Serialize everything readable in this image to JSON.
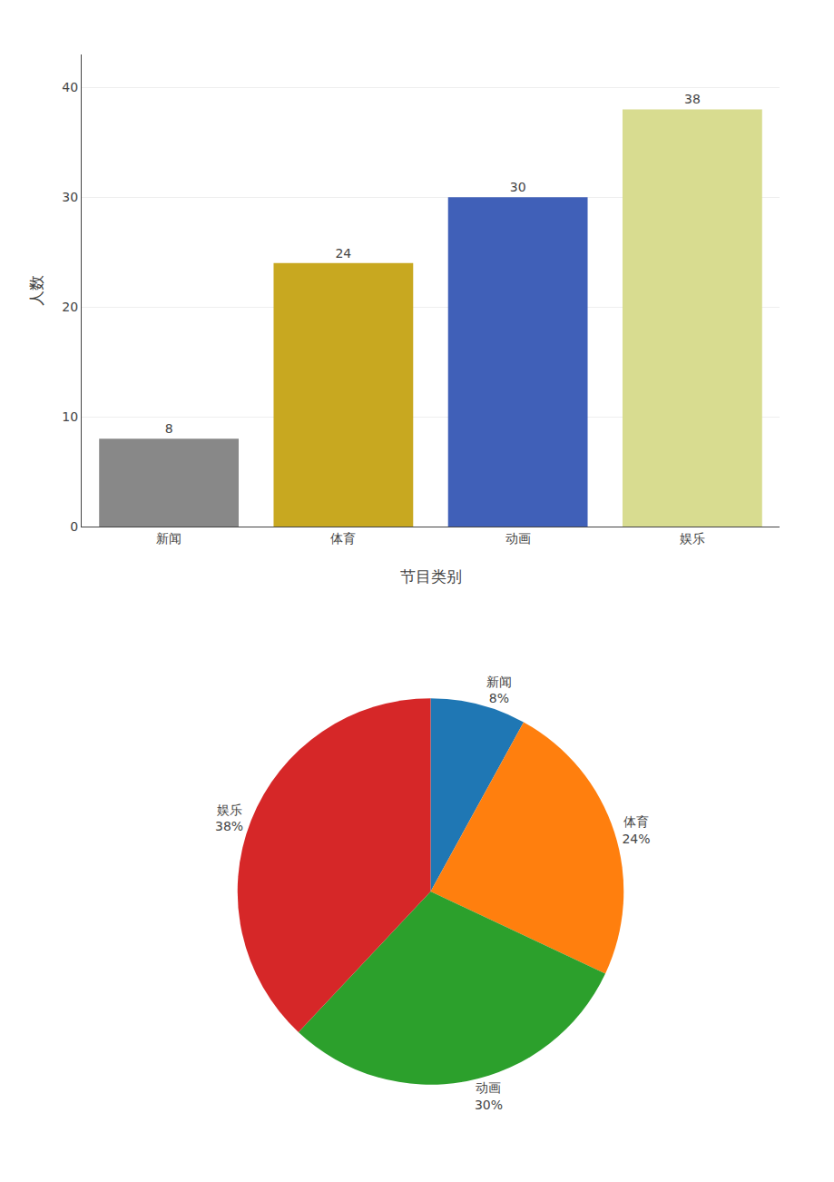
{
  "chart_data": [
    {
      "type": "bar",
      "categories": [
        "新闻",
        "体育",
        "动画",
        "娱乐"
      ],
      "values": [
        8,
        24,
        30,
        38
      ],
      "colors": [
        "#888888",
        "#c8a820",
        "#4060b8",
        "#d8dc90"
      ],
      "xlabel": "节目类别",
      "ylabel": "人数",
      "ylim": [
        0,
        43
      ],
      "yticks": [
        0,
        10,
        20,
        30,
        40
      ],
      "grid": true,
      "data_labels": true
    },
    {
      "type": "pie",
      "categories": [
        "新闻",
        "体育",
        "动画",
        "娱乐"
      ],
      "values": [
        8,
        24,
        30,
        38
      ],
      "value_labels": [
        "8%",
        "24%",
        "30%",
        "38%"
      ],
      "data_labels": true
    }
  ]
}
